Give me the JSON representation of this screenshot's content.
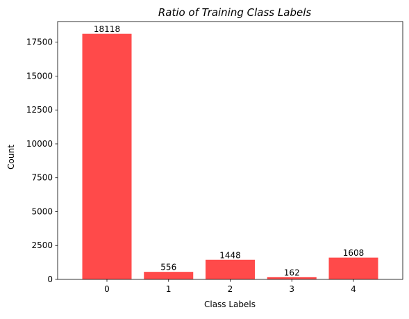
{
  "chart_data": {
    "type": "bar",
    "title": "Ratio of Training Class Labels",
    "xlabel": "Class Labels",
    "ylabel": "Count",
    "categories": [
      "0",
      "1",
      "2",
      "3",
      "4"
    ],
    "values": [
      18118,
      556,
      1448,
      162,
      1608
    ],
    "data_labels": [
      "18118",
      "556",
      "1448",
      "162",
      "1608"
    ],
    "ylim": [
      0,
      19024
    ],
    "yticks": [
      0,
      2500,
      5000,
      7500,
      10000,
      12500,
      15000,
      17500
    ],
    "ytick_labels": [
      "0",
      "2500",
      "5000",
      "7500",
      "10000",
      "12500",
      "15000",
      "17500"
    ],
    "grid": false,
    "bar_color": "#ff4a4a"
  }
}
